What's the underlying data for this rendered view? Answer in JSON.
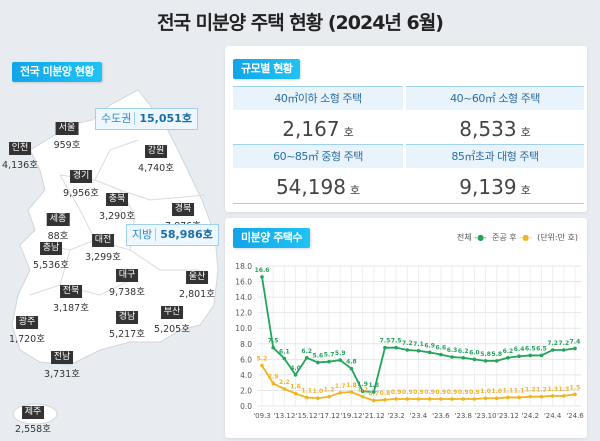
{
  "title": "전국 미분양 주택 현황  (2024년 6월)",
  "map": {
    "header": "전국 미분양 현황",
    "capital": {
      "label": "수도권",
      "value": "15,051호"
    },
    "local": {
      "label": "지방",
      "value": "58,986호"
    },
    "regions": [
      {
        "name": "서울",
        "value": "959호"
      },
      {
        "name": "인천",
        "value": "4,136호"
      },
      {
        "name": "강원",
        "value": "4,740호"
      },
      {
        "name": "경기",
        "value": "9,956호"
      },
      {
        "name": "충북",
        "value": "3,290호"
      },
      {
        "name": "경북",
        "value": "7,876호"
      },
      {
        "name": "세종",
        "value": "88호"
      },
      {
        "name": "대전",
        "value": "3,299호"
      },
      {
        "name": "충남",
        "value": "5,536호"
      },
      {
        "name": "대구",
        "value": "9,738호"
      },
      {
        "name": "울산",
        "value": "2,801호"
      },
      {
        "name": "전북",
        "value": "3,187호"
      },
      {
        "name": "광주",
        "value": "1,720호"
      },
      {
        "name": "경남",
        "value": "5,217호"
      },
      {
        "name": "부산",
        "value": "5,205호"
      },
      {
        "name": "전남",
        "value": "3,731호"
      },
      {
        "name": "제주",
        "value": "2,558호"
      }
    ]
  },
  "size": {
    "header": "규모별 현황",
    "unit": "호",
    "cells": [
      {
        "label": "40㎡이하 소형 주택",
        "value": "2,167"
      },
      {
        "label": "40~60㎡ 소형 주택",
        "value": "8,533"
      },
      {
        "label": "60~85㎡ 중형 주택",
        "value": "54,198"
      },
      {
        "label": "85㎡초과 대형 주택",
        "value": "9,139"
      }
    ]
  },
  "chart_data": {
    "type": "line",
    "title": "미분양 주택수",
    "unit_note": "(단위:만 호)",
    "legend_position": "top-right",
    "grid": true,
    "ylim": [
      0,
      18
    ],
    "yticks": [
      "0.0",
      "2.0",
      "4.0",
      "6.0",
      "8.0",
      "10.0",
      "12.0",
      "14.0",
      "16.0",
      "18.0"
    ],
    "xtick_labels": [
      "'09.3",
      "'13.12",
      "'15.12",
      "'17.12",
      "'19.12",
      "'21.12",
      "'23.2",
      "'23.4",
      "'23.6",
      "'23.8",
      "'23.10",
      "'23.12",
      "'24.2",
      "'24.4",
      "'24.6"
    ],
    "series": [
      {
        "name": "전체",
        "color": "#22a55a",
        "values": [
          16.6,
          7.5,
          6.1,
          4.0,
          6.2,
          5.6,
          5.7,
          5.9,
          4.8,
          1.9,
          1.8,
          7.5,
          7.5,
          7.2,
          7.1,
          6.9,
          6.6,
          6.3,
          6.2,
          6.0,
          5.8,
          5.8,
          6.2,
          6.4,
          6.5,
          6.5,
          7.2,
          7.2,
          7.4
        ]
      },
      {
        "name": "준공 후",
        "color": "#f2b321",
        "values": [
          5.2,
          2.9,
          2.2,
          1.6,
          1.1,
          1.0,
          1.2,
          1.7,
          1.8,
          1.2,
          0.7,
          0.8,
          0.9,
          0.9,
          0.9,
          0.9,
          0.9,
          0.9,
          0.9,
          0.9,
          1.0,
          1.0,
          1.1,
          1.1,
          1.2,
          1.2,
          1.3,
          1.3,
          1.5
        ]
      }
    ]
  }
}
